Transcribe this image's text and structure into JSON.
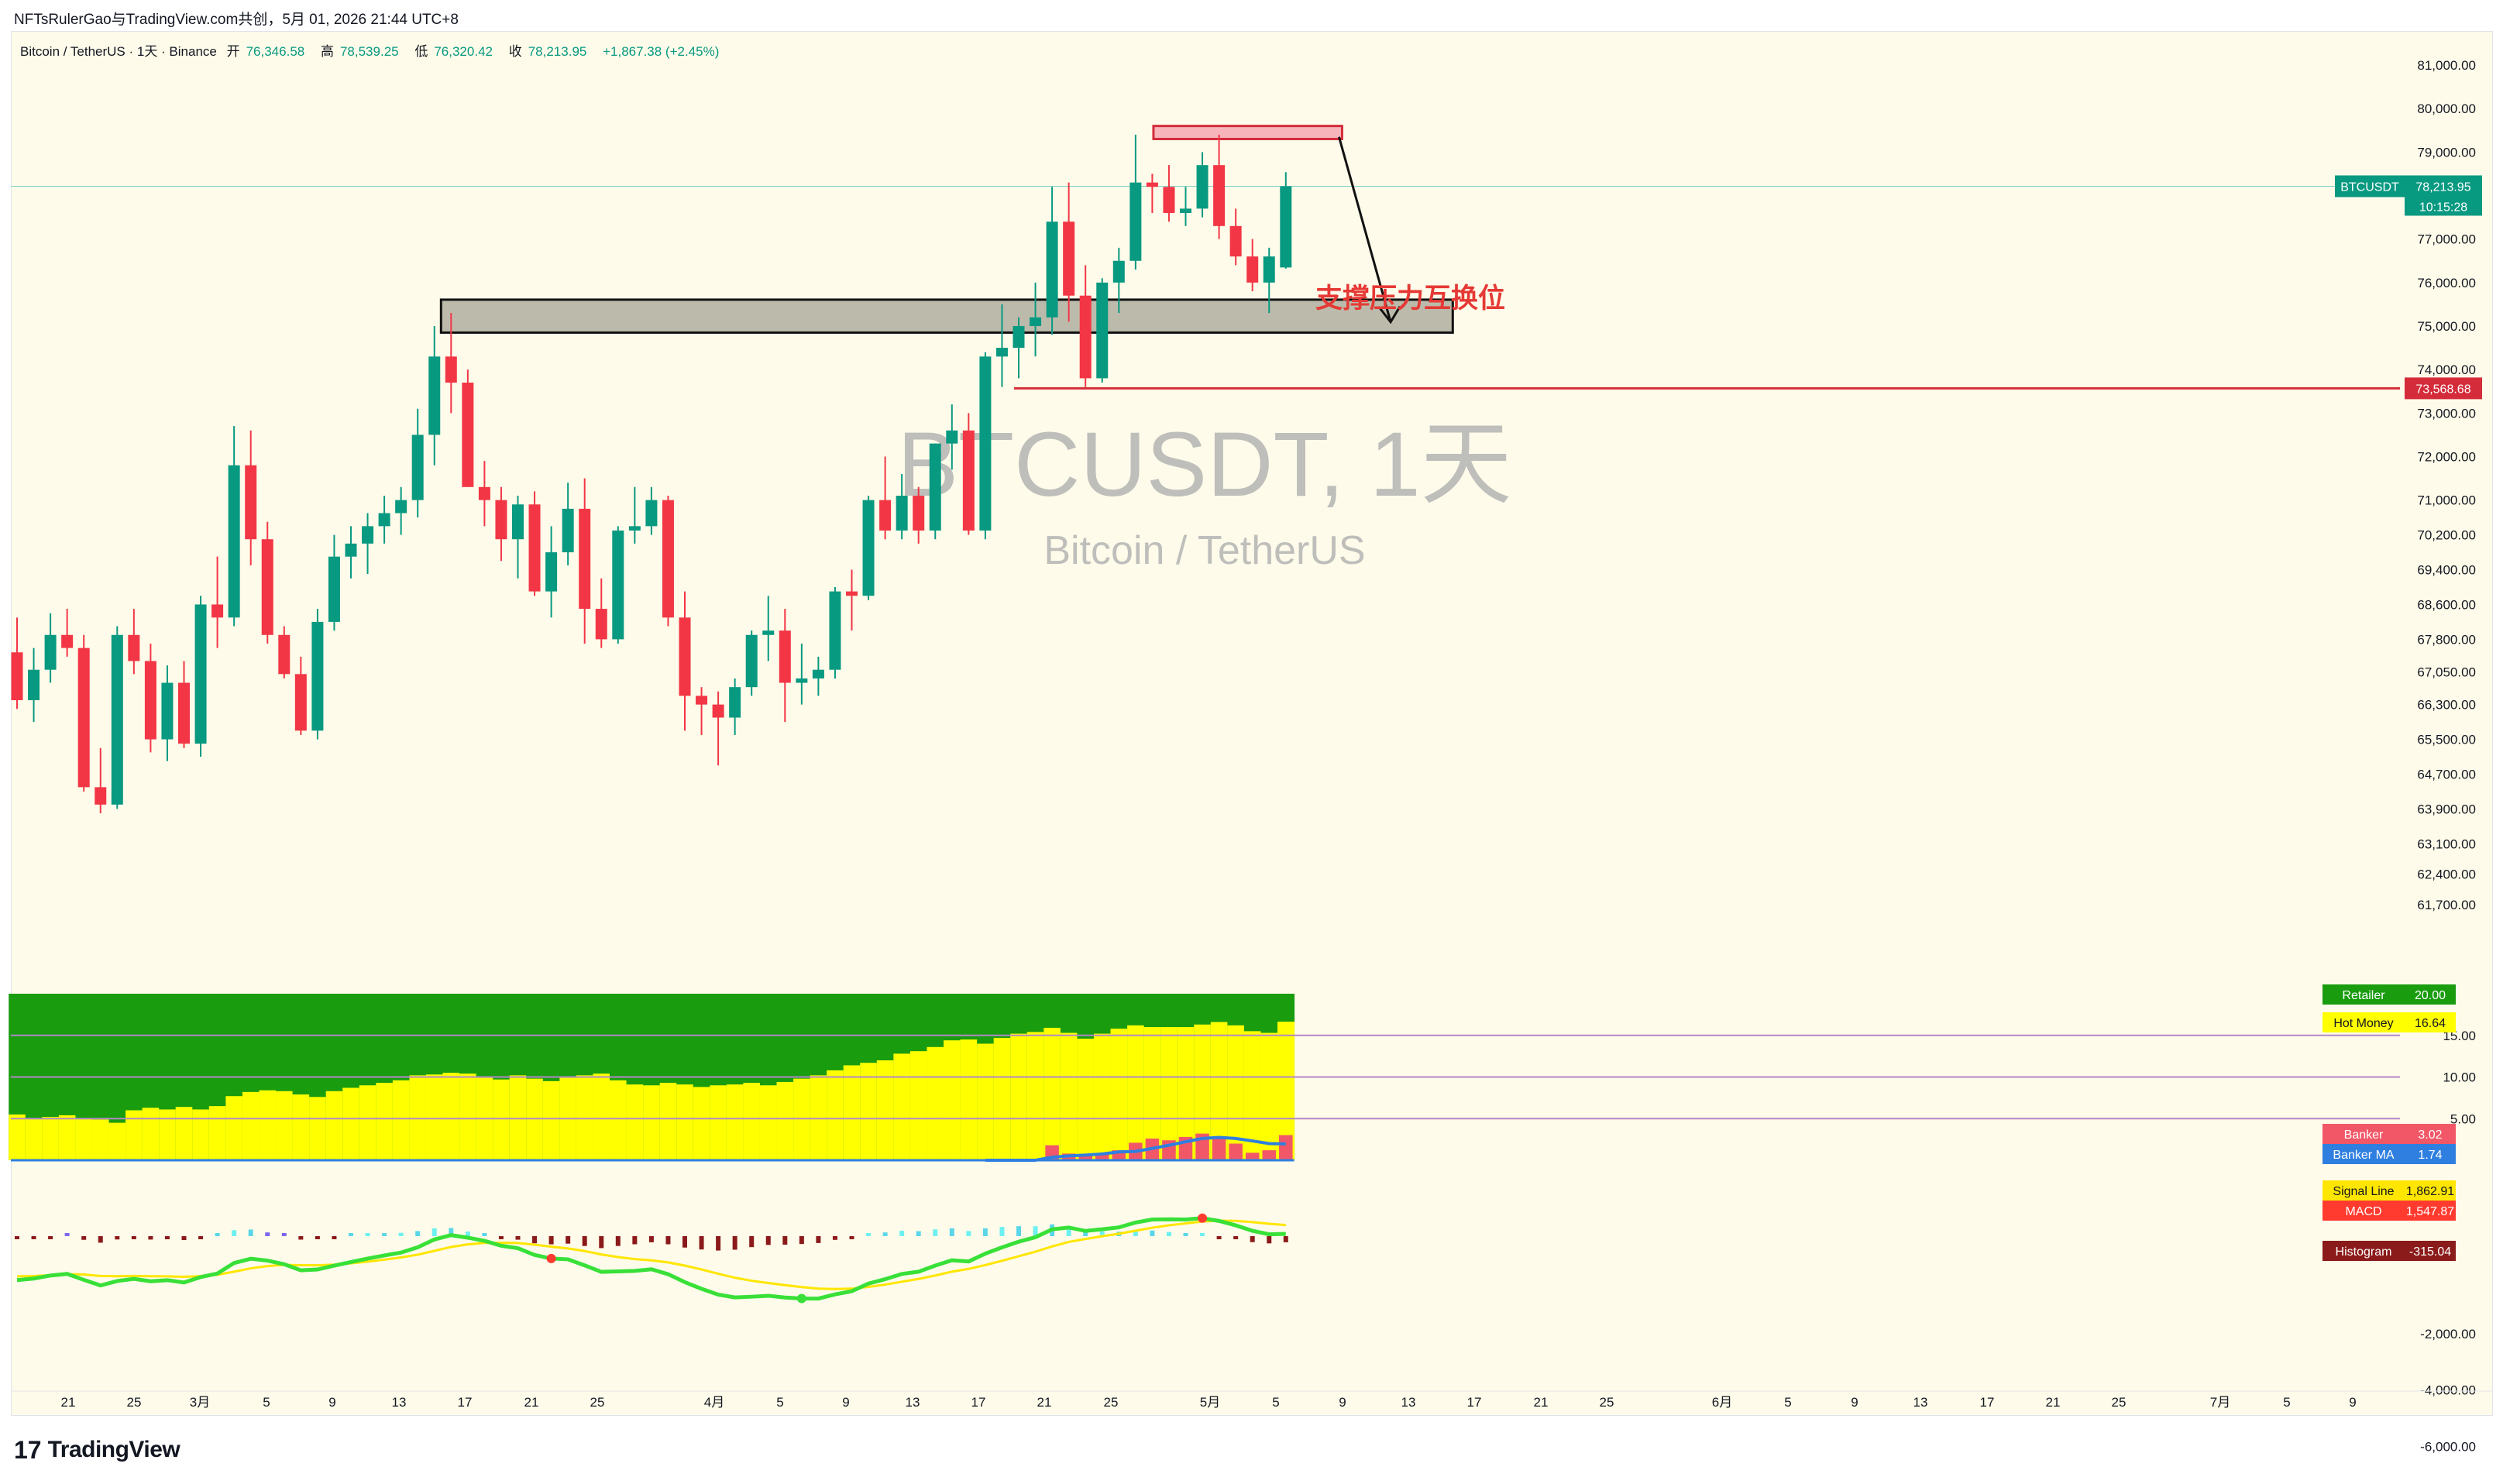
{
  "credit": "NFTsRulerGao与TradingView.com共创，5月 01, 2026 21:44 UTC+8",
  "legend": {
    "symbol": "Bitcoin / TetherUS · 1天 · Binance",
    "open_label": "开",
    "open": "76,346.58",
    "high_label": "高",
    "high": "78,539.25",
    "low_label": "低",
    "low": "76,320.42",
    "close_label": "收",
    "close": "78,213.95",
    "change": "+1,867.38 (+2.45%)"
  },
  "watermark": {
    "main": "BTCUSDT, 1天",
    "sub": "Bitcoin / TetherUS"
  },
  "annotation": "支撑压力互换位",
  "footer": {
    "logo_text": "TradingView",
    "logo_mark": "17"
  },
  "colors": {
    "up": "#089981",
    "down": "#f23645",
    "retailer": "#1a9c0f",
    "hot_money": "#ffff00",
    "banker": "#f25767",
    "banker_ma": "#2f7fe0",
    "macd_line": "#ff3b30",
    "signal_line": "#ffe600",
    "hline": "#d42c3a"
  },
  "chart_data": [
    {
      "type": "candlestick",
      "title": "BTCUSDT, 1天",
      "yaxis_ticks": [
        "81,000.00",
        "80,000.00",
        "79,000.00",
        "78,000.00",
        "77,000.00",
        "76,000.00",
        "75,000.00",
        "74,000.00",
        "73,000.00",
        "72,000.00",
        "71,000.00",
        "70,200.00",
        "69,400.00",
        "68,600.00",
        "67,800.00",
        "67,050.00",
        "66,300.00",
        "65,500.00",
        "64,700.00",
        "63,900.00",
        "63,100.00",
        "62,400.00",
        "61,700.00"
      ],
      "ylim": [
        61200,
        81600
      ],
      "xaxis_ticks": [
        "21",
        "25",
        "3月",
        "5",
        "9",
        "13",
        "17",
        "21",
        "25",
        "4月",
        "5",
        "9",
        "13",
        "17",
        "21",
        "25",
        "5月",
        "5",
        "9",
        "13",
        "17",
        "21",
        "25",
        "6月",
        "5",
        "9",
        "13",
        "17",
        "21",
        "25",
        "7月",
        "5",
        "9"
      ],
      "candles": [
        [
          67500,
          68300,
          66200,
          66400
        ],
        [
          66400,
          67600,
          65900,
          67100
        ],
        [
          67100,
          68400,
          66800,
          67900
        ],
        [
          67900,
          68500,
          67400,
          67600
        ],
        [
          67600,
          67900,
          64300,
          64400
        ],
        [
          64400,
          65300,
          63800,
          64000
        ],
        [
          64000,
          68100,
          63900,
          67900
        ],
        [
          67900,
          68500,
          67000,
          67300
        ],
        [
          67300,
          67700,
          65200,
          65500
        ],
        [
          65500,
          67200,
          65000,
          66800
        ],
        [
          66800,
          67300,
          65300,
          65400
        ],
        [
          65400,
          68800,
          65100,
          68600
        ],
        [
          68600,
          69700,
          67600,
          68300
        ],
        [
          68300,
          72700,
          68100,
          71800
        ],
        [
          71800,
          72600,
          69500,
          70100
        ],
        [
          70100,
          70500,
          67700,
          67900
        ],
        [
          67900,
          68100,
          66900,
          67000
        ],
        [
          67000,
          67400,
          65600,
          65700
        ],
        [
          65700,
          68500,
          65500,
          68200
        ],
        [
          68200,
          70200,
          68000,
          69700
        ],
        [
          69700,
          70400,
          69200,
          70000
        ],
        [
          70000,
          70700,
          69300,
          70400
        ],
        [
          70400,
          71100,
          70000,
          70700
        ],
        [
          70700,
          71300,
          70200,
          71000
        ],
        [
          71000,
          73100,
          70600,
          72500
        ],
        [
          72500,
          75000,
          71800,
          74300
        ],
        [
          74300,
          75300,
          73000,
          73700
        ],
        [
          73700,
          74000,
          71300,
          71300
        ],
        [
          71300,
          71900,
          70400,
          71000
        ],
        [
          71000,
          71300,
          69600,
          70100
        ],
        [
          70100,
          71100,
          69200,
          70900
        ],
        [
          70900,
          71200,
          68800,
          68900
        ],
        [
          68900,
          70400,
          68300,
          69800
        ],
        [
          69800,
          71400,
          69500,
          70800
        ],
        [
          70800,
          71500,
          67700,
          68500
        ],
        [
          68500,
          69200,
          67600,
          67800
        ],
        [
          67800,
          70400,
          67700,
          70300
        ],
        [
          70300,
          71300,
          70000,
          70400
        ],
        [
          70400,
          71300,
          70200,
          71000
        ],
        [
          71000,
          71100,
          68100,
          68300
        ],
        [
          68300,
          68900,
          65700,
          66500
        ],
        [
          66500,
          66700,
          65600,
          66300
        ],
        [
          66300,
          66600,
          64900,
          66000
        ],
        [
          66000,
          66900,
          65600,
          66700
        ],
        [
          66700,
          68000,
          66500,
          67900
        ],
        [
          67900,
          68800,
          67300,
          68000
        ],
        [
          68000,
          68500,
          65900,
          66800
        ],
        [
          66800,
          67700,
          66300,
          66900
        ],
        [
          66900,
          67400,
          66500,
          67100
        ],
        [
          67100,
          69000,
          66900,
          68900
        ],
        [
          68900,
          69400,
          68000,
          68800
        ],
        [
          68800,
          71100,
          68700,
          71000
        ],
        [
          71000,
          72000,
          70100,
          70300
        ],
        [
          70300,
          71600,
          70100,
          71100
        ],
        [
          71100,
          71300,
          70000,
          70300
        ],
        [
          70300,
          72300,
          70100,
          72300
        ],
        [
          72300,
          73200,
          71700,
          72600
        ],
        [
          72600,
          73000,
          70200,
          70300
        ],
        [
          70300,
          74400,
          70100,
          74300
        ],
        [
          74300,
          75500,
          73600,
          74500
        ],
        [
          74500,
          75200,
          73800,
          75000
        ],
        [
          75000,
          76000,
          74300,
          75200
        ],
        [
          75200,
          78200,
          74800,
          77400
        ],
        [
          77400,
          78300,
          75100,
          75700
        ],
        [
          75700,
          76400,
          73600,
          73800
        ],
        [
          73800,
          76100,
          73700,
          76000
        ],
        [
          76000,
          76800,
          75300,
          76500
        ],
        [
          76500,
          79400,
          76300,
          78300
        ],
        [
          78300,
          78500,
          77600,
          78200
        ],
        [
          78200,
          78700,
          77400,
          77600
        ],
        [
          77600,
          78200,
          77300,
          77700
        ],
        [
          77700,
          79000,
          77500,
          78700
        ],
        [
          78700,
          79400,
          77000,
          77300
        ],
        [
          77300,
          77700,
          76400,
          76600
        ],
        [
          76600,
          77000,
          75800,
          76000
        ],
        [
          76000,
          76800,
          75300,
          76600
        ],
        [
          76346.58,
          78539.25,
          76320.42,
          78213.95
        ]
      ],
      "price_lines": [
        {
          "label": "BTCUSDT",
          "value": "78,213.95",
          "countdown": "10:15:28"
        },
        {
          "label": "",
          "value": "73,568.68"
        }
      ],
      "zones": [
        {
          "name": "resistance",
          "from": 79300,
          "to": 79600
        },
        {
          "name": "support",
          "from": 74850,
          "to": 75500
        }
      ],
      "annotation": "支撑压力互换位"
    },
    {
      "type": "stacked-bar",
      "name": "Banker / Hot Money / Retailer",
      "yaxis_ticks": [
        "15.00",
        "10.00",
        "5.00"
      ],
      "series": [
        {
          "name": "Retailer",
          "last": "20.00",
          "color": "#1a9c0f"
        },
        {
          "name": "Hot Money",
          "last": "16.64",
          "color": "#ffff00"
        },
        {
          "name": "Banker",
          "last": "3.02",
          "color": "#f25767"
        },
        {
          "name": "Banker MA",
          "last": "1.74",
          "color": "#2f7fe0"
        }
      ],
      "hot_money_values": [
        5.5,
        5.0,
        5.2,
        5.4,
        5.0,
        4.9,
        4.5,
        6.0,
        6.3,
        6.1,
        6.4,
        6.1,
        6.5,
        7.7,
        8.2,
        8.4,
        8.3,
        7.9,
        7.6,
        8.3,
        8.7,
        9.0,
        9.3,
        9.6,
        10.2,
        10.3,
        10.5,
        10.4,
        9.9,
        9.7,
        10.2,
        9.8,
        9.5,
        9.9,
        10.2,
        10.4,
        9.6,
        9.1,
        9.0,
        9.3,
        9.1,
        8.8,
        9.0,
        9.1,
        9.3,
        9.0,
        9.4,
        9.8,
        10.2,
        10.8,
        11.4,
        11.7,
        12.0,
        12.8,
        13.1,
        13.6,
        14.4,
        14.5,
        14.0,
        14.7,
        15.2,
        15.4,
        15.9,
        15.3,
        14.6,
        15.2,
        15.8,
        16.2,
        16.0,
        16.0,
        16.0,
        16.3,
        16.6,
        16.2,
        15.5,
        15.3,
        16.64
      ],
      "banker_values": [
        0,
        0,
        0,
        0,
        0,
        0,
        0,
        0,
        0,
        0,
        0,
        0,
        0,
        0,
        0,
        0,
        0,
        0,
        0,
        0,
        0,
        0,
        0,
        0,
        0,
        0,
        0,
        0,
        0,
        0,
        0,
        0,
        0,
        0,
        0,
        0,
        0,
        0,
        0,
        0,
        0,
        0,
        0,
        0,
        0,
        0,
        0,
        0,
        0,
        0,
        0,
        0,
        0,
        0,
        0,
        0,
        0,
        0,
        0,
        0,
        0,
        0,
        1.8,
        0.8,
        0.5,
        0.7,
        1.2,
        2.1,
        2.6,
        2.4,
        2.8,
        3.2,
        2.7,
        2.0,
        0.9,
        1.2,
        3.02
      ]
    },
    {
      "type": "macd",
      "yaxis_ticks": [
        "-2,000.00",
        "-4,000.00",
        "-6,000.00"
      ],
      "series": [
        {
          "name": "Signal Line",
          "last": "1,862.91",
          "color": "#ffe600"
        },
        {
          "name": "MACD",
          "last": "1,547.87",
          "color": "#ff3b30"
        },
        {
          "name": "Histogram",
          "last": "-315.04",
          "color": "#8b1a1a"
        }
      ],
      "ylim": [
        -6000,
        2500
      ]
    }
  ]
}
